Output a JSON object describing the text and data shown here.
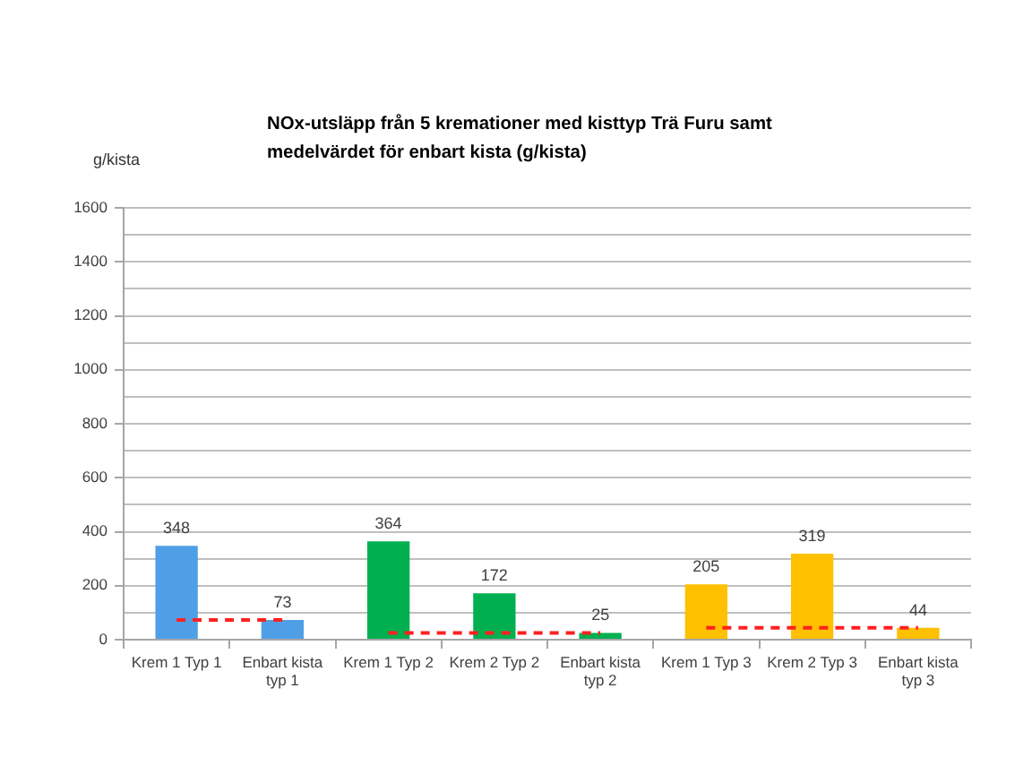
{
  "chart_data": {
    "type": "bar",
    "title": "NOx-utsläpp från 5 kremationer med kisttyp Trä Furu samt medelvärdet för enbart kista (g/kista)",
    "ylabel": "g/kista",
    "categories": [
      "Krem 1 Typ 1",
      "Enbart kista typ 1",
      "Krem 1 Typ 2",
      "Krem 2 Typ 2",
      "Enbart kista typ 2",
      "Krem 1 Typ 3",
      "Krem 2 Typ 3",
      "Enbart kista typ 3"
    ],
    "series": [
      {
        "colors": [
          "#4f9fe6",
          "#4f9fe6",
          "#00b050",
          "#00b050",
          "#00b050",
          "#ffc000",
          "#ffc000",
          "#ffc000"
        ],
        "values": [
          348,
          73,
          364,
          172,
          25,
          205,
          319,
          44
        ],
        "value_labels": [
          "348",
          "73",
          "364",
          "172",
          "25",
          "205",
          "319",
          "44"
        ]
      },
      {
        "type": "line",
        "color": "#ff2020",
        "line_style": "dashed",
        "marker": "none",
        "values": [
          73,
          73,
          null,
          null,
          null,
          null,
          null,
          null
        ]
      },
      {
        "type": "line",
        "color": "#ff2020",
        "line_style": "dashed",
        "marker": "none",
        "values": [
          null,
          null,
          25,
          25,
          25,
          null,
          null,
          null
        ]
      },
      {
        "type": "line",
        "color": "#ff2020",
        "line_style": "dashed",
        "marker": "none",
        "values": [
          null,
          null,
          null,
          null,
          null,
          44,
          44,
          44
        ]
      }
    ],
    "ylim": [
      0,
      1600
    ],
    "yticks": [
      0,
      {
        "value": 100,
        "label": null
      },
      200,
      {
        "value": 300,
        "label": null
      },
      400,
      {
        "value": 500,
        "label": null
      },
      600,
      {
        "value": 700,
        "label": null
      },
      800,
      {
        "value": 900,
        "label": null
      },
      1000,
      {
        "value": 1100,
        "label": null
      },
      1200,
      {
        "value": 1300,
        "label": null
      },
      1400,
      {
        "value": 1500,
        "label": null
      },
      1600
    ],
    "grid": "y"
  }
}
